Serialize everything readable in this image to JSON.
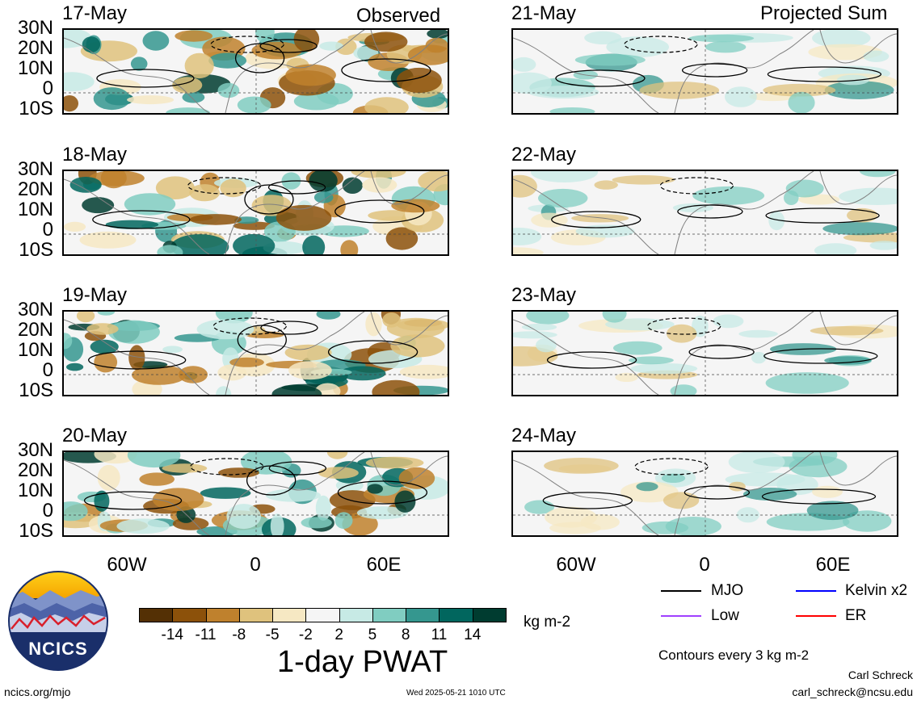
{
  "columns": {
    "left_title": "Observed",
    "right_title": "Projected Sum"
  },
  "panels": [
    {
      "date": "17-May",
      "kind": "observed"
    },
    {
      "date": "18-May",
      "kind": "observed"
    },
    {
      "date": "19-May",
      "kind": "observed"
    },
    {
      "date": "20-May",
      "kind": "observed"
    },
    {
      "date": "21-May",
      "kind": "projected"
    },
    {
      "date": "22-May",
      "kind": "projected"
    },
    {
      "date": "23-May",
      "kind": "projected"
    },
    {
      "date": "24-May",
      "kind": "projected"
    }
  ],
  "lat_labels": [
    "30N",
    "20N",
    "10N",
    "0",
    "10S"
  ],
  "lon_labels": [
    "60W",
    "0",
    "60E"
  ],
  "colorbar": {
    "title": "1-day PWAT",
    "units": "kg m-2",
    "ticks": [
      "-14",
      "-11",
      "-8",
      "-5",
      "-2",
      "2",
      "5",
      "8",
      "11",
      "14"
    ],
    "colors": [
      "#543005",
      "#8c510a",
      "#bf812d",
      "#dfc27d",
      "#f6e8c3",
      "#f5f5f5",
      "#c7eae5",
      "#80cdc1",
      "#35978f",
      "#01665e",
      "#003c30"
    ]
  },
  "legend": {
    "items": [
      {
        "label": "MJO",
        "color": "#000000"
      },
      {
        "label": "Kelvin x2",
        "color": "#0000ff"
      },
      {
        "label": "Low",
        "color": "#a040ff"
      },
      {
        "label": "ER",
        "color": "#ff0000"
      }
    ],
    "contour_note": "Contours every 3 kg m-2"
  },
  "credits": {
    "logo_text": "NCICS",
    "site": "ncics.org/mjo",
    "timestamp": "Wed 2025-05-21 1010 UTC",
    "author": "Carl Schreck",
    "email": "carl_schreck@ncsu.edu"
  }
}
